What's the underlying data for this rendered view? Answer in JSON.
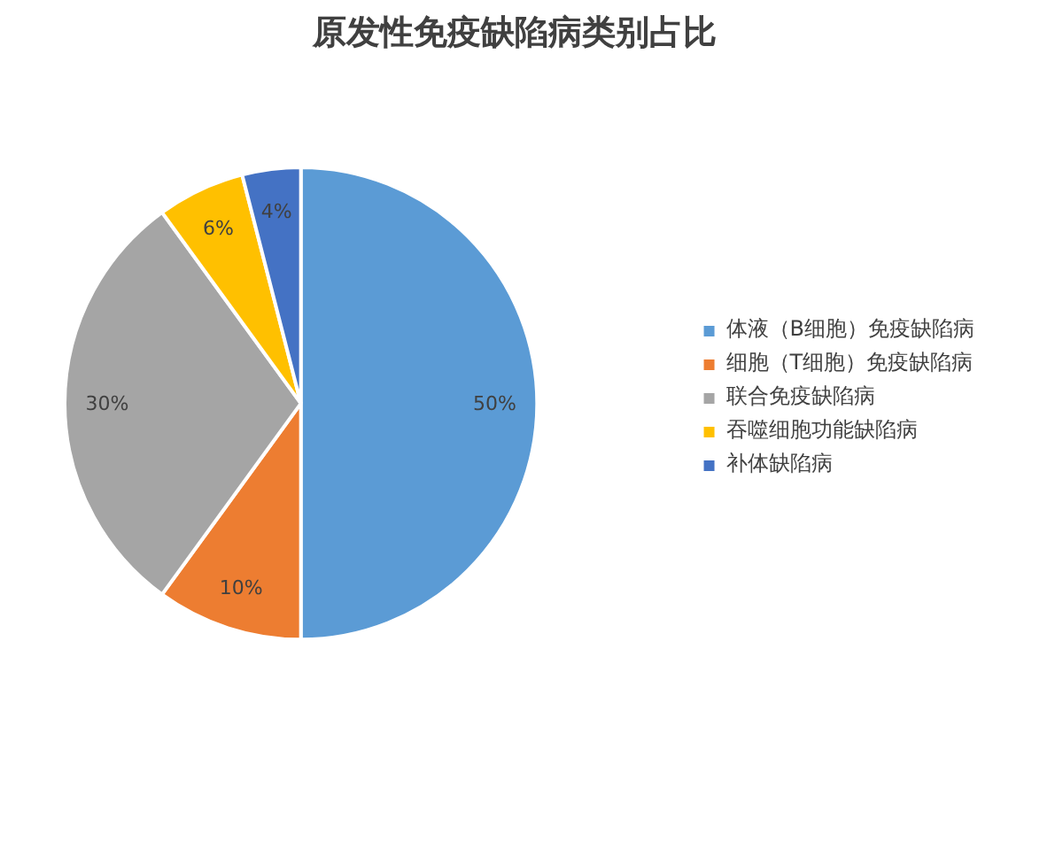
{
  "chart_data": {
    "type": "pie",
    "title": "原发性免疫缺陷病类别占比",
    "categories": [
      "体液（B细胞）免疫缺陷病",
      "细胞（T细胞）免疫缺陷病",
      "联合免疫缺陷病",
      "吞噬细胞功能缺陷病",
      "补体缺陷病"
    ],
    "values": [
      50,
      10,
      30,
      6,
      4
    ],
    "colors": [
      "#5b9bd5",
      "#ed7d31",
      "#a5a5a5",
      "#ffc000",
      "#4472c4"
    ],
    "value_labels": [
      "50%",
      "10%",
      "30%",
      "6%",
      "4%"
    ],
    "legend": "right"
  }
}
